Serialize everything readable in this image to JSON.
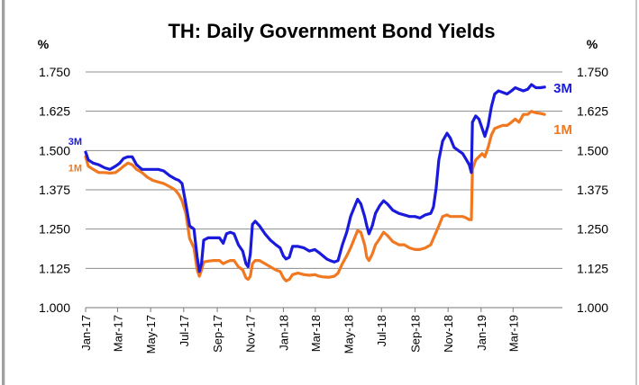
{
  "chart_data": {
    "type": "line",
    "title": "TH: Daily Government Bond Yields",
    "ylabel_left": "%",
    "ylabel_right": "%",
    "ylim": [
      1.0,
      1.75
    ],
    "yticks": [
      "1.000",
      "1.125",
      "1.250",
      "1.375",
      "1.500",
      "1.625",
      "1.750"
    ],
    "xlim": [
      "2017-01-01",
      "2019-05-31"
    ],
    "xticks": [
      {
        "label": "Jan-17",
        "date": "2017-01-01"
      },
      {
        "label": "Mar-17",
        "date": "2017-03-01"
      },
      {
        "label": "May-17",
        "date": "2017-05-01"
      },
      {
        "label": "Jul-17",
        "date": "2017-07-01"
      },
      {
        "label": "Sep-17",
        "date": "2017-09-01"
      },
      {
        "label": "Nov-17",
        "date": "2017-11-01"
      },
      {
        "label": "Jan-18",
        "date": "2018-01-01"
      },
      {
        "label": "Mar-18",
        "date": "2018-03-01"
      },
      {
        "label": "May-18",
        "date": "2018-05-01"
      },
      {
        "label": "Jul-18",
        "date": "2018-07-01"
      },
      {
        "label": "Sep-18",
        "date": "2018-09-01"
      },
      {
        "label": "Nov-18",
        "date": "2018-11-01"
      },
      {
        "label": "Jan-19",
        "date": "2019-01-01"
      },
      {
        "label": "Mar-19",
        "date": "2019-03-01"
      }
    ],
    "grid": true,
    "series": [
      {
        "name": "3M",
        "color": "#1a1adc",
        "points": [
          [
            "2017-01-01",
            1.495
          ],
          [
            "2017-01-06",
            1.47
          ],
          [
            "2017-01-15",
            1.46
          ],
          [
            "2017-01-25",
            1.455
          ],
          [
            "2017-02-05",
            1.445
          ],
          [
            "2017-02-15",
            1.44
          ],
          [
            "2017-02-25",
            1.45
          ],
          [
            "2017-03-05",
            1.46
          ],
          [
            "2017-03-12",
            1.475
          ],
          [
            "2017-03-20",
            1.48
          ],
          [
            "2017-03-28",
            1.48
          ],
          [
            "2017-04-05",
            1.455
          ],
          [
            "2017-04-15",
            1.44
          ],
          [
            "2017-04-25",
            1.44
          ],
          [
            "2017-05-05",
            1.44
          ],
          [
            "2017-05-15",
            1.44
          ],
          [
            "2017-05-25",
            1.435
          ],
          [
            "2017-06-05",
            1.42
          ],
          [
            "2017-06-15",
            1.41
          ],
          [
            "2017-06-22",
            1.405
          ],
          [
            "2017-06-28",
            1.395
          ],
          [
            "2017-07-05",
            1.33
          ],
          [
            "2017-07-12",
            1.26
          ],
          [
            "2017-07-20",
            1.25
          ],
          [
            "2017-07-26",
            1.16
          ],
          [
            "2017-07-30",
            1.115
          ],
          [
            "2017-08-03",
            1.14
          ],
          [
            "2017-08-07",
            1.215
          ],
          [
            "2017-08-15",
            1.222
          ],
          [
            "2017-08-25",
            1.222
          ],
          [
            "2017-09-05",
            1.222
          ],
          [
            "2017-09-12",
            1.205
          ],
          [
            "2017-09-18",
            1.235
          ],
          [
            "2017-09-25",
            1.24
          ],
          [
            "2017-10-02",
            1.235
          ],
          [
            "2017-10-10",
            1.2
          ],
          [
            "2017-10-18",
            1.18
          ],
          [
            "2017-10-24",
            1.14
          ],
          [
            "2017-10-28",
            1.13
          ],
          [
            "2017-11-01",
            1.17
          ],
          [
            "2017-11-05",
            1.265
          ],
          [
            "2017-11-10",
            1.275
          ],
          [
            "2017-11-18",
            1.26
          ],
          [
            "2017-11-28",
            1.235
          ],
          [
            "2017-12-08",
            1.215
          ],
          [
            "2017-12-18",
            1.2
          ],
          [
            "2017-12-26",
            1.19
          ],
          [
            "2018-01-01",
            1.165
          ],
          [
            "2018-01-06",
            1.155
          ],
          [
            "2018-01-12",
            1.16
          ],
          [
            "2018-01-18",
            1.195
          ],
          [
            "2018-01-28",
            1.195
          ],
          [
            "2018-02-08",
            1.19
          ],
          [
            "2018-02-18",
            1.18
          ],
          [
            "2018-02-28",
            1.185
          ],
          [
            "2018-03-08",
            1.175
          ],
          [
            "2018-03-15",
            1.165
          ],
          [
            "2018-03-22",
            1.155
          ],
          [
            "2018-03-28",
            1.15
          ],
          [
            "2018-04-05",
            1.145
          ],
          [
            "2018-04-12",
            1.15
          ],
          [
            "2018-04-20",
            1.2
          ],
          [
            "2018-04-28",
            1.24
          ],
          [
            "2018-05-05",
            1.29
          ],
          [
            "2018-05-12",
            1.32
          ],
          [
            "2018-05-18",
            1.345
          ],
          [
            "2018-05-24",
            1.33
          ],
          [
            "2018-05-31",
            1.29
          ],
          [
            "2018-06-04",
            1.26
          ],
          [
            "2018-06-08",
            1.235
          ],
          [
            "2018-06-14",
            1.26
          ],
          [
            "2018-06-20",
            1.3
          ],
          [
            "2018-06-28",
            1.325
          ],
          [
            "2018-07-05",
            1.34
          ],
          [
            "2018-07-12",
            1.33
          ],
          [
            "2018-07-22",
            1.31
          ],
          [
            "2018-08-02",
            1.3
          ],
          [
            "2018-08-12",
            1.295
          ],
          [
            "2018-08-22",
            1.29
          ],
          [
            "2018-09-01",
            1.29
          ],
          [
            "2018-09-10",
            1.285
          ],
          [
            "2018-09-20",
            1.295
          ],
          [
            "2018-09-30",
            1.3
          ],
          [
            "2018-10-05",
            1.32
          ],
          [
            "2018-10-10",
            1.38
          ],
          [
            "2018-10-15",
            1.47
          ],
          [
            "2018-10-22",
            1.53
          ],
          [
            "2018-10-30",
            1.555
          ],
          [
            "2018-11-05",
            1.54
          ],
          [
            "2018-11-12",
            1.51
          ],
          [
            "2018-11-20",
            1.5
          ],
          [
            "2018-11-28",
            1.49
          ],
          [
            "2018-12-05",
            1.47
          ],
          [
            "2018-12-10",
            1.455
          ],
          [
            "2018-12-14",
            1.43
          ],
          [
            "2018-12-16",
            1.59
          ],
          [
            "2018-12-22",
            1.61
          ],
          [
            "2018-12-28",
            1.6
          ],
          [
            "2019-01-03",
            1.57
          ],
          [
            "2019-01-08",
            1.545
          ],
          [
            "2019-01-14",
            1.58
          ],
          [
            "2019-01-20",
            1.64
          ],
          [
            "2019-01-26",
            1.68
          ],
          [
            "2019-02-02",
            1.69
          ],
          [
            "2019-02-10",
            1.685
          ],
          [
            "2019-02-18",
            1.68
          ],
          [
            "2019-02-26",
            1.69
          ],
          [
            "2019-03-05",
            1.7
          ],
          [
            "2019-03-12",
            1.695
          ],
          [
            "2019-03-20",
            1.69
          ],
          [
            "2019-03-28",
            1.695
          ],
          [
            "2019-04-04",
            1.71
          ],
          [
            "2019-04-12",
            1.7
          ],
          [
            "2019-04-20",
            1.7
          ],
          [
            "2019-04-28",
            1.702
          ]
        ]
      },
      {
        "name": "1M",
        "color": "#f07820",
        "points": [
          [
            "2017-01-01",
            1.48
          ],
          [
            "2017-01-06",
            1.45
          ],
          [
            "2017-01-15",
            1.44
          ],
          [
            "2017-01-25",
            1.43
          ],
          [
            "2017-02-05",
            1.43
          ],
          [
            "2017-02-15",
            1.428
          ],
          [
            "2017-02-25",
            1.43
          ],
          [
            "2017-03-05",
            1.44
          ],
          [
            "2017-03-12",
            1.45
          ],
          [
            "2017-03-20",
            1.46
          ],
          [
            "2017-03-28",
            1.455
          ],
          [
            "2017-04-05",
            1.44
          ],
          [
            "2017-04-15",
            1.43
          ],
          [
            "2017-04-25",
            1.415
          ],
          [
            "2017-05-05",
            1.405
          ],
          [
            "2017-05-15",
            1.4
          ],
          [
            "2017-05-25",
            1.395
          ],
          [
            "2017-06-05",
            1.385
          ],
          [
            "2017-06-15",
            1.375
          ],
          [
            "2017-06-22",
            1.36
          ],
          [
            "2017-06-28",
            1.34
          ],
          [
            "2017-07-05",
            1.3
          ],
          [
            "2017-07-12",
            1.22
          ],
          [
            "2017-07-20",
            1.19
          ],
          [
            "2017-07-26",
            1.12
          ],
          [
            "2017-07-30",
            1.1
          ],
          [
            "2017-08-03",
            1.12
          ],
          [
            "2017-08-07",
            1.145
          ],
          [
            "2017-08-15",
            1.148
          ],
          [
            "2017-08-25",
            1.15
          ],
          [
            "2017-09-05",
            1.15
          ],
          [
            "2017-09-12",
            1.14
          ],
          [
            "2017-09-18",
            1.145
          ],
          [
            "2017-09-25",
            1.15
          ],
          [
            "2017-10-02",
            1.15
          ],
          [
            "2017-10-10",
            1.13
          ],
          [
            "2017-10-18",
            1.12
          ],
          [
            "2017-10-24",
            1.095
          ],
          [
            "2017-10-28",
            1.09
          ],
          [
            "2017-11-01",
            1.1
          ],
          [
            "2017-11-05",
            1.14
          ],
          [
            "2017-11-10",
            1.15
          ],
          [
            "2017-11-18",
            1.15
          ],
          [
            "2017-11-28",
            1.14
          ],
          [
            "2017-12-08",
            1.13
          ],
          [
            "2017-12-18",
            1.12
          ],
          [
            "2017-12-26",
            1.115
          ],
          [
            "2018-01-01",
            1.095
          ],
          [
            "2018-01-06",
            1.085
          ],
          [
            "2018-01-12",
            1.09
          ],
          [
            "2018-01-18",
            1.105
          ],
          [
            "2018-01-28",
            1.11
          ],
          [
            "2018-02-08",
            1.105
          ],
          [
            "2018-02-18",
            1.103
          ],
          [
            "2018-02-28",
            1.105
          ],
          [
            "2018-03-08",
            1.1
          ],
          [
            "2018-03-15",
            1.098
          ],
          [
            "2018-03-22",
            1.097
          ],
          [
            "2018-03-28",
            1.097
          ],
          [
            "2018-04-05",
            1.1
          ],
          [
            "2018-04-12",
            1.11
          ],
          [
            "2018-04-20",
            1.14
          ],
          [
            "2018-04-28",
            1.165
          ],
          [
            "2018-05-05",
            1.19
          ],
          [
            "2018-05-12",
            1.22
          ],
          [
            "2018-05-18",
            1.245
          ],
          [
            "2018-05-24",
            1.24
          ],
          [
            "2018-05-31",
            1.2
          ],
          [
            "2018-06-04",
            1.16
          ],
          [
            "2018-06-08",
            1.15
          ],
          [
            "2018-06-14",
            1.17
          ],
          [
            "2018-06-20",
            1.2
          ],
          [
            "2018-06-28",
            1.22
          ],
          [
            "2018-07-05",
            1.24
          ],
          [
            "2018-07-12",
            1.23
          ],
          [
            "2018-07-22",
            1.21
          ],
          [
            "2018-08-02",
            1.2
          ],
          [
            "2018-08-12",
            1.2
          ],
          [
            "2018-08-22",
            1.19
          ],
          [
            "2018-09-01",
            1.185
          ],
          [
            "2018-09-10",
            1.185
          ],
          [
            "2018-09-20",
            1.19
          ],
          [
            "2018-09-30",
            1.2
          ],
          [
            "2018-10-05",
            1.22
          ],
          [
            "2018-10-10",
            1.24
          ],
          [
            "2018-10-15",
            1.26
          ],
          [
            "2018-10-22",
            1.29
          ],
          [
            "2018-10-30",
            1.295
          ],
          [
            "2018-11-05",
            1.29
          ],
          [
            "2018-11-12",
            1.29
          ],
          [
            "2018-11-20",
            1.29
          ],
          [
            "2018-11-28",
            1.29
          ],
          [
            "2018-12-05",
            1.285
          ],
          [
            "2018-12-10",
            1.28
          ],
          [
            "2018-12-14",
            1.28
          ],
          [
            "2018-12-16",
            1.44
          ],
          [
            "2018-12-22",
            1.47
          ],
          [
            "2018-12-28",
            1.48
          ],
          [
            "2019-01-03",
            1.49
          ],
          [
            "2019-01-08",
            1.48
          ],
          [
            "2019-01-14",
            1.51
          ],
          [
            "2019-01-20",
            1.55
          ],
          [
            "2019-01-26",
            1.57
          ],
          [
            "2019-02-02",
            1.575
          ],
          [
            "2019-02-10",
            1.58
          ],
          [
            "2019-02-18",
            1.58
          ],
          [
            "2019-02-26",
            1.59
          ],
          [
            "2019-03-05",
            1.6
          ],
          [
            "2019-03-12",
            1.59
          ],
          [
            "2019-03-20",
            1.615
          ],
          [
            "2019-03-28",
            1.615
          ],
          [
            "2019-04-04",
            1.625
          ],
          [
            "2019-04-12",
            1.62
          ],
          [
            "2019-04-20",
            1.618
          ],
          [
            "2019-04-28",
            1.615
          ]
        ]
      }
    ]
  }
}
